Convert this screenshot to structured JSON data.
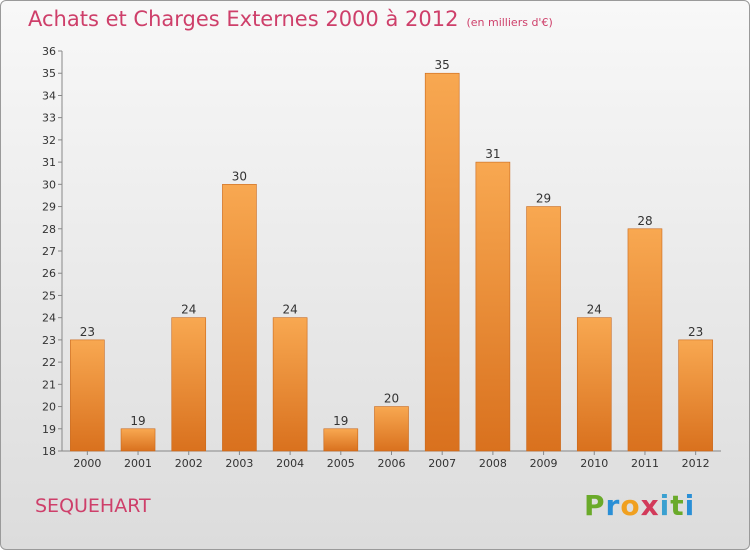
{
  "chart_data": {
    "type": "bar",
    "title": "Achats et Charges Externes 2000 à 2012",
    "subtitle": "(en milliers d'€)",
    "categories": [
      "2000",
      "2001",
      "2002",
      "2003",
      "2004",
      "2005",
      "2006",
      "2007",
      "2008",
      "2009",
      "2010",
      "2011",
      "2012"
    ],
    "values": [
      23,
      19,
      24,
      30,
      24,
      19,
      20,
      35,
      31,
      29,
      24,
      28,
      23
    ],
    "ylim": [
      18,
      36
    ],
    "yticks": [
      18,
      19,
      20,
      21,
      22,
      23,
      24,
      25,
      26,
      27,
      28,
      29,
      30,
      31,
      32,
      33,
      34,
      35,
      36
    ],
    "grid": false,
    "bar_color": "#f6a04d",
    "bar_color_dark": "#e07a22"
  },
  "footer": {
    "place": "SEQUEHART",
    "logo": [
      "P",
      "r",
      "o",
      "x",
      "i",
      "t",
      "i"
    ],
    "logo_colors": [
      "#6aaa2a",
      "#2a8fd6",
      "#f0a020",
      "#d23a5a",
      "#3aa0d0",
      "#6aaa2a",
      "#2a8fd6"
    ]
  }
}
